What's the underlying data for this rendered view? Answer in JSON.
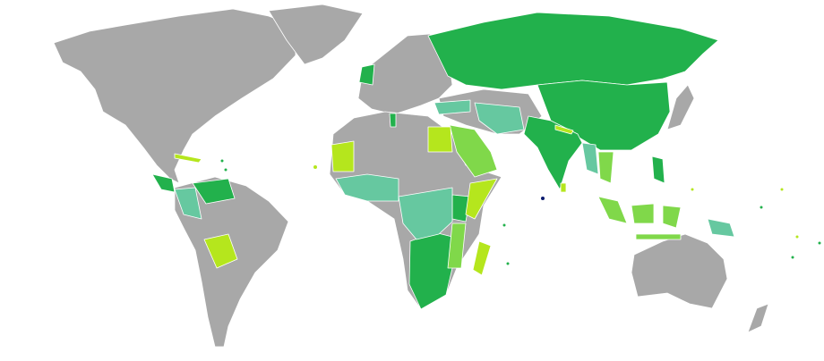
{
  "map": {
    "colors": {
      "ocean": "#ffffff",
      "no_data": "#a8a8a8",
      "dark_green": "#22b14c",
      "mid_green": "#80d84a",
      "lime": "#b5e61d",
      "teal": "#66c8a0",
      "navy": "#0a1a6e"
    }
  }
}
